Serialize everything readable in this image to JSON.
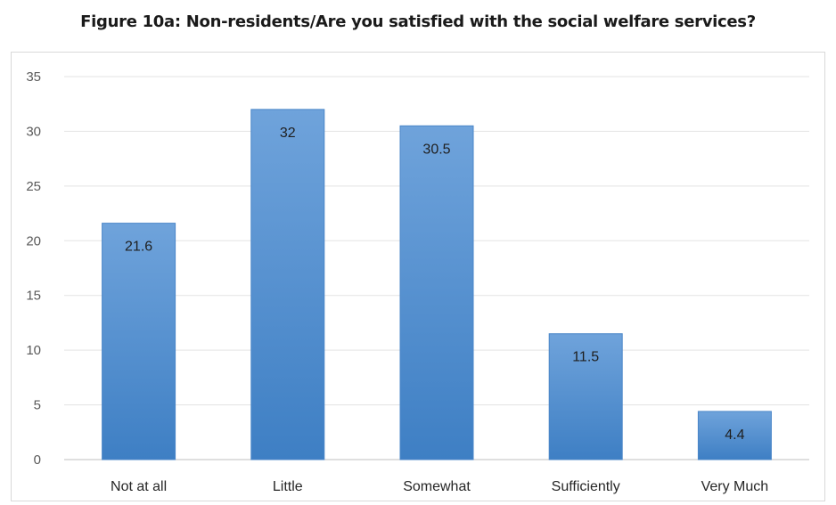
{
  "chart_data": {
    "type": "bar",
    "title": "Figure 10a: Non-residents/Are you satisfied with the social welfare services?",
    "categories": [
      "Not at all",
      "Little",
      "Somewhat",
      "Sufficiently",
      "Very Much"
    ],
    "values": [
      21.6,
      32,
      30.5,
      11.5,
      4.4
    ],
    "data_labels": [
      "21.6",
      "32",
      "30.5",
      "11.5",
      "4.4"
    ],
    "ylim": [
      0,
      35
    ],
    "yticks": [
      0,
      5,
      10,
      15,
      20,
      25,
      30,
      35
    ],
    "grid": true,
    "legend": "none",
    "bar_color_top": "#6fa3db",
    "bar_color_bottom": "#3e7fc4"
  }
}
